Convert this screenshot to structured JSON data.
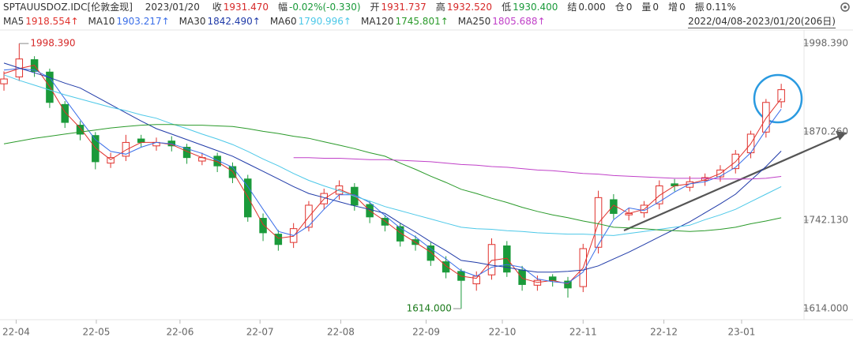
{
  "header": {
    "symbol": "SPTAUUSDOZ.IDC[伦敦金现]",
    "date": "2023/01/20",
    "fields": [
      {
        "label": "收",
        "value": "1931.470",
        "color": "#d62828"
      },
      {
        "label": "幅",
        "value": "-0.02%(-0.330)",
        "color": "#1a9a3a"
      },
      {
        "label": "开",
        "value": "1931.737",
        "color": "#d62828"
      },
      {
        "label": "高",
        "value": "1932.520",
        "color": "#d62828"
      },
      {
        "label": "低",
        "value": "1930.400",
        "color": "#1a9a3a"
      },
      {
        "label": "结",
        "value": "0.000",
        "color": "#333333"
      },
      {
        "label": "仓",
        "value": "0",
        "color": "#333333"
      },
      {
        "label": "量",
        "value": "0",
        "color": "#333333"
      },
      {
        "label": "增",
        "value": "0",
        "color": "#333333"
      },
      {
        "label": "振",
        "value": "0.11%",
        "color": "#333333"
      }
    ],
    "range": "2022/04/08-2023/01/20(206日)"
  },
  "chart_data": {
    "type": "candlestick",
    "up_color": "#e0312c",
    "down_color": "#1a9a3a",
    "xlim": [
      -0.26,
      52.34
    ],
    "xticks": [
      {
        "value": 0.8,
        "label": "22-04"
      },
      {
        "value": 6.06,
        "label": "22-05"
      },
      {
        "value": 11.55,
        "label": "22-06"
      },
      {
        "value": 16.8,
        "label": "22-07"
      },
      {
        "value": 22.1,
        "label": "22-08"
      },
      {
        "value": 27.7,
        "label": "22-09"
      },
      {
        "value": 32.7,
        "label": "22-10"
      },
      {
        "value": 38.0,
        "label": "22-11"
      },
      {
        "value": 43.3,
        "label": "22-12"
      },
      {
        "value": 48.4,
        "label": "23-01"
      }
    ],
    "ylim": [
      1598,
      2018
    ],
    "yticks": [
      {
        "value": 1614,
        "label": "1614.000"
      },
      {
        "value": 1742.13,
        "label": "1742.130"
      },
      {
        "value": 1870.26,
        "label": "1870.260"
      },
      {
        "value": 1998.39,
        "label": "1998.390"
      }
    ],
    "open": [
      1940,
      1950,
      1975,
      1957,
      1910,
      1880,
      1865,
      1825,
      1835,
      1860,
      1850,
      1857,
      1848,
      1828,
      1835,
      1820,
      1802,
      1745,
      1722,
      1710,
      1732,
      1766,
      1780,
      1790,
      1765,
      1745,
      1733,
      1714,
      1705,
      1682,
      1668,
      1650,
      1663,
      1705,
      1670,
      1648,
      1660,
      1654,
      1646,
      1703,
      1772,
      1750,
      1753,
      1766,
      1795,
      1790,
      1800,
      1805,
      1817,
      1840,
      1870,
      1914
    ],
    "high": [
      1958,
      1998.39,
      1980,
      1962,
      1915,
      1886,
      1870,
      1840,
      1866,
      1866,
      1862,
      1864,
      1853,
      1840,
      1840,
      1826,
      1808,
      1752,
      1728,
      1738,
      1770,
      1788,
      1800,
      1796,
      1770,
      1750,
      1738,
      1720,
      1710,
      1690,
      1672,
      1668,
      1716,
      1712,
      1676,
      1662,
      1664,
      1660,
      1708,
      1785,
      1780,
      1760,
      1770,
      1800,
      1802,
      1806,
      1810,
      1822,
      1844,
      1872,
      1918,
      1940
    ],
    "low": [
      1930,
      1944,
      1950,
      1905,
      1876,
      1858,
      1816,
      1818,
      1828,
      1848,
      1843,
      1842,
      1824,
      1822,
      1812,
      1796,
      1740,
      1712,
      1698,
      1702,
      1726,
      1758,
      1772,
      1756,
      1738,
      1726,
      1704,
      1698,
      1676,
      1658,
      1614.0,
      1640,
      1656,
      1660,
      1640,
      1640,
      1646,
      1630,
      1638,
      1694,
      1744,
      1742,
      1746,
      1758,
      1784,
      1784,
      1792,
      1798,
      1810,
      1832,
      1862,
      1905
    ],
    "close": [
      1947,
      1976,
      1958,
      1913,
      1884,
      1867,
      1827,
      1833,
      1855,
      1855,
      1855,
      1850,
      1833,
      1833,
      1821,
      1804,
      1747,
      1724,
      1707,
      1730,
      1764,
      1781,
      1792,
      1764,
      1747,
      1735,
      1712,
      1707,
      1684,
      1667,
      1655,
      1661,
      1707,
      1667,
      1649,
      1655,
      1655,
      1644,
      1701,
      1775,
      1752,
      1752,
      1764,
      1792,
      1792,
      1798,
      1804,
      1815,
      1838,
      1867,
      1913,
      1931.47
    ],
    "annotations": [
      {
        "label": "1998.390",
        "value": 1998.39,
        "color": "#d62828"
      },
      {
        "label": "1614.000",
        "value": 1614.0,
        "color": "#1a7a1a"
      }
    ],
    "series": [
      {
        "name": "MA5",
        "last": "1918.554↑",
        "color": "#e0312c",
        "values": [
          1955,
          1962,
          1967,
          1936,
          1899,
          1876,
          1847,
          1830,
          1844,
          1855,
          1855,
          1852,
          1842,
          1833,
          1827,
          1813,
          1776,
          1736,
          1716,
          1719,
          1747,
          1773,
          1787,
          1778,
          1756,
          1741,
          1724,
          1710,
          1696,
          1676,
          1661,
          1658,
          1684,
          1687,
          1658,
          1652,
          1655,
          1650,
          1673,
          1738,
          1764,
          1752,
          1758,
          1778,
          1792,
          1795,
          1801,
          1810,
          1827,
          1853,
          1890,
          1918.554
        ]
      },
      {
        "name": "MA10",
        "last": "1903.217↑",
        "color": "#3a6ee8",
        "values": [
          1960,
          1962,
          1960,
          1949,
          1918,
          1888,
          1859,
          1842,
          1838,
          1848,
          1855,
          1853,
          1846,
          1839,
          1829,
          1819,
          1791,
          1758,
          1726,
          1720,
          1734,
          1758,
          1779,
          1779,
          1768,
          1749,
          1731,
          1718,
          1701,
          1686,
          1669,
          1661,
          1674,
          1678,
          1674,
          1657,
          1653,
          1651,
          1667,
          1707,
          1743,
          1760,
          1756,
          1769,
          1783,
          1795,
          1798,
          1806,
          1819,
          1840,
          1873,
          1903.217
        ]
      },
      {
        "name": "MA30",
        "last": "1842.490↑",
        "color": "#1f3aa8",
        "values": [
          1970,
          1963,
          1956,
          1949,
          1941,
          1934,
          1922,
          1910,
          1898,
          1886,
          1875,
          1867,
          1859,
          1851,
          1843,
          1835,
          1824,
          1813,
          1802,
          1791,
          1781,
          1775,
          1769,
          1763,
          1758,
          1752,
          1738,
          1725,
          1711,
          1698,
          1684,
          1681,
          1677,
          1674,
          1670,
          1667,
          1667,
          1668,
          1670,
          1676,
          1686,
          1696,
          1707,
          1718,
          1729,
          1740,
          1753,
          1766,
          1780,
          1800,
          1820,
          1842.49
        ]
      },
      {
        "name": "MA60",
        "last": "1790.996↑",
        "color": "#4cc8e8",
        "values": [
          1953,
          1945,
          1938,
          1931,
          1924,
          1918,
          1912,
          1906,
          1901,
          1895,
          1890,
          1882,
          1875,
          1867,
          1860,
          1852,
          1842,
          1831,
          1821,
          1810,
          1800,
          1792,
          1785,
          1777,
          1770,
          1762,
          1756,
          1750,
          1744,
          1738,
          1732,
          1730,
          1729,
          1727,
          1726,
          1724,
          1723,
          1722,
          1722,
          1721,
          1720,
          1723,
          1726,
          1729,
          1732,
          1735,
          1743,
          1750,
          1758,
          1769,
          1780,
          1790.996
        ]
      },
      {
        "name": "MA120",
        "last": "1745.801↑",
        "color": "#2a9a2a",
        "values": [
          1853,
          1857,
          1861,
          1864,
          1867,
          1870,
          1873,
          1876,
          1878,
          1880,
          1881,
          1881,
          1880,
          1880,
          1879,
          1878,
          1875,
          1871,
          1868,
          1864,
          1861,
          1856,
          1851,
          1846,
          1840,
          1835,
          1825,
          1816,
          1806,
          1797,
          1787,
          1781,
          1774,
          1768,
          1761,
          1755,
          1750,
          1746,
          1741,
          1737,
          1732,
          1731,
          1730,
          1728,
          1727,
          1726,
          1727,
          1729,
          1732,
          1737,
          1741,
          1745.801
        ]
      },
      {
        "name": "MA250",
        "last": "1805.688↑",
        "color": "#c040c8",
        "values": [
          null,
          null,
          null,
          null,
          null,
          null,
          null,
          null,
          null,
          null,
          null,
          null,
          null,
          null,
          null,
          null,
          null,
          null,
          null,
          1833,
          1833,
          1832,
          1832,
          1831,
          1830,
          1830,
          1829,
          1828,
          1827,
          1825,
          1823,
          1822,
          1820,
          1819,
          1817,
          1815,
          1814,
          1812,
          1810,
          1809,
          1807,
          1806,
          1805,
          1804,
          1803,
          1803,
          1803,
          1802,
          1802,
          1802,
          1803,
          1805.688
        ]
      }
    ]
  }
}
